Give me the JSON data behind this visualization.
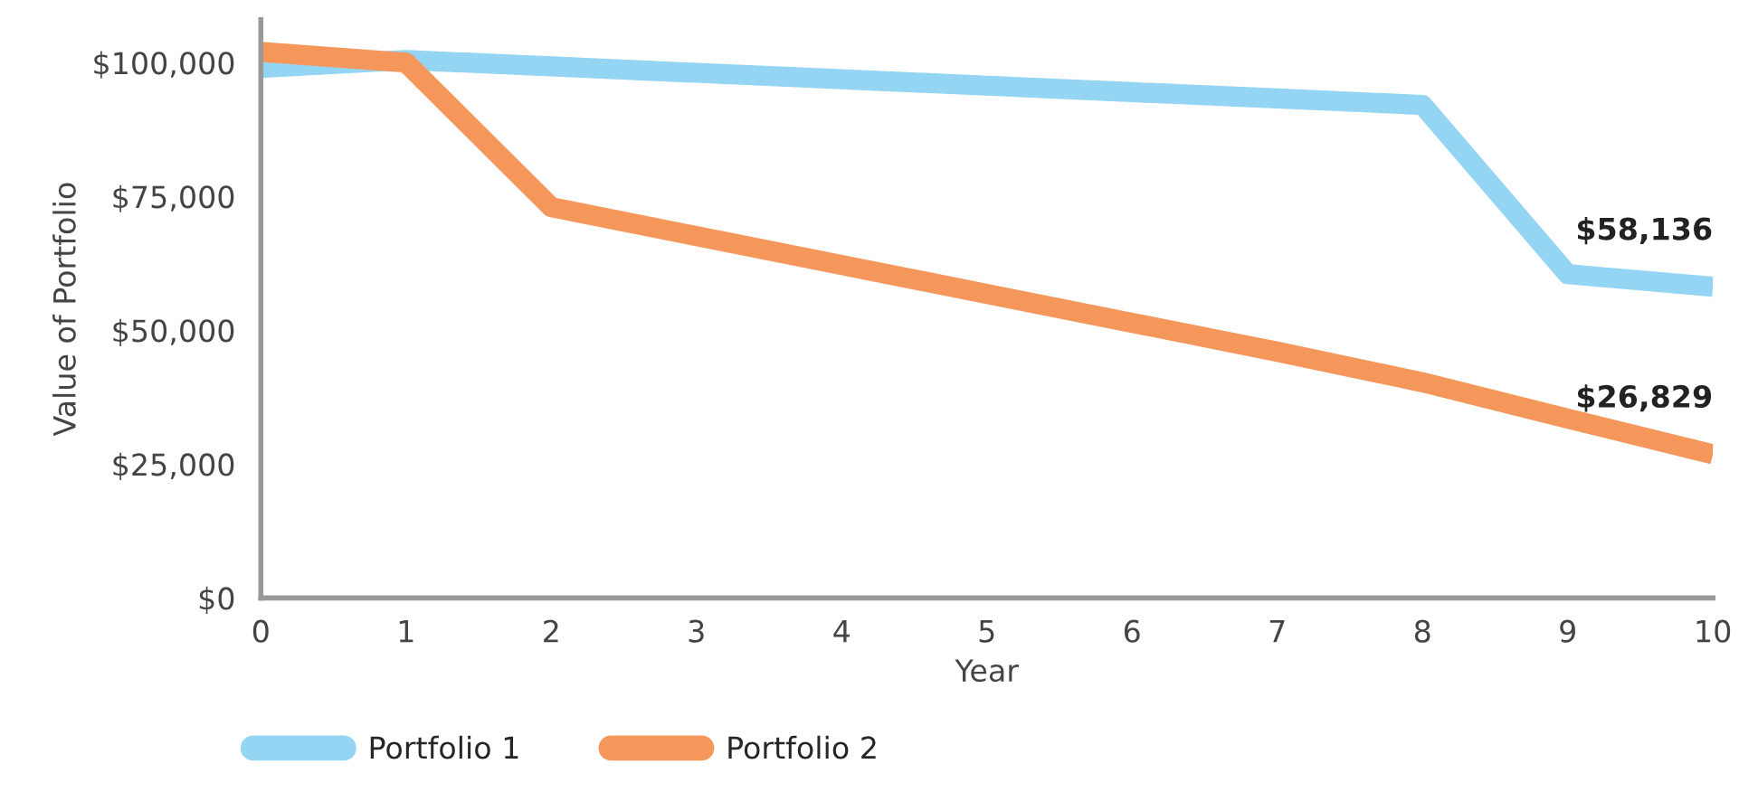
{
  "chart_data": {
    "type": "line",
    "xlabel": "Year",
    "ylabel": "Value of Portfolio",
    "x": [
      0,
      1,
      2,
      3,
      4,
      5,
      6,
      7,
      8,
      9,
      10
    ],
    "series": [
      {
        "name": "Portfolio 1",
        "color": "#93d5f3",
        "values": [
          99000,
          100500,
          99300,
          98100,
          96900,
          95700,
          94500,
          93300,
          92100,
          60500,
          58136
        ]
      },
      {
        "name": "Portfolio 2",
        "color": "#f5965a",
        "values": [
          102000,
          100000,
          73000,
          67600,
          62200,
          56800,
          51400,
          46000,
          40300,
          33500,
          26829
        ]
      }
    ],
    "annotations": [
      {
        "text": "$58,136",
        "x": 10,
        "y": 58136
      },
      {
        "text": "$26,829",
        "x": 10,
        "y": 26829
      }
    ],
    "xlim": [
      0,
      10
    ],
    "xticks": [
      0,
      1,
      2,
      3,
      4,
      5,
      6,
      7,
      8,
      9,
      10
    ],
    "ylim": [
      0,
      108000
    ],
    "yticks": [
      {
        "value": 0,
        "label": "$0"
      },
      {
        "value": 25000,
        "label": "$25,000"
      },
      {
        "value": 50000,
        "label": "$50,000"
      },
      {
        "value": 75000,
        "label": "$75,000"
      },
      {
        "value": 100000,
        "label": "$100,000"
      }
    ],
    "grid": false,
    "legend": "bottom left",
    "line_style": "solid",
    "marker": "none"
  }
}
